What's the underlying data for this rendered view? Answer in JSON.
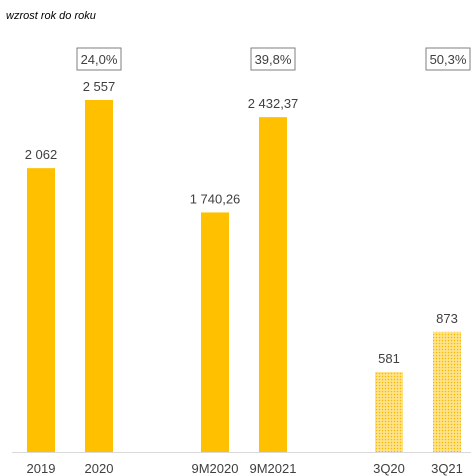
{
  "chart_data": {
    "type": "bar",
    "subtitle": "wzrost rok do roku",
    "categories": [
      "2019",
      "2020",
      "9M2020",
      "9M2021",
      "3Q20",
      "3Q21"
    ],
    "values": [
      2062,
      2557,
      1740.26,
      2432.37,
      581,
      873
    ],
    "value_labels": [
      "2 062",
      "2 557",
      "1 740,26",
      "2 432,37",
      "581",
      "873"
    ],
    "groups": [
      {
        "categories": [
          "2019",
          "2020"
        ],
        "growth_label": "24,0%"
      },
      {
        "categories": [
          "9M2020",
          "9M2021"
        ],
        "growth_label": "39,8%"
      },
      {
        "categories": [
          "3Q20",
          "3Q21"
        ],
        "growth_label": "50,3%"
      }
    ],
    "bar_color": "#FFC000",
    "dotted_categories": [
      "3Q20",
      "3Q21"
    ],
    "ylim": [
      0,
      2750
    ],
    "grid": false
  }
}
